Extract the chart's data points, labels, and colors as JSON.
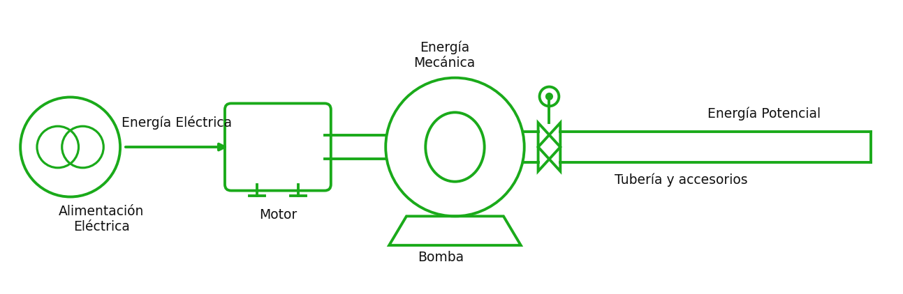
{
  "green": "#1aaa1a",
  "lw": 2.8,
  "bg": "#ffffff",
  "text_color": "#111111",
  "font_size": 13.5,
  "labels": {
    "energia_electrica": "Energía Eléctrica",
    "alimentacion": "Alimentación\nEléctrica",
    "motor": "Motor",
    "energia_mecanica": "Energía\nMecánica",
    "bomba": "Bomba",
    "tuberia": "Tubería y accesorios",
    "energia_potencial": "Energía Potencial"
  }
}
